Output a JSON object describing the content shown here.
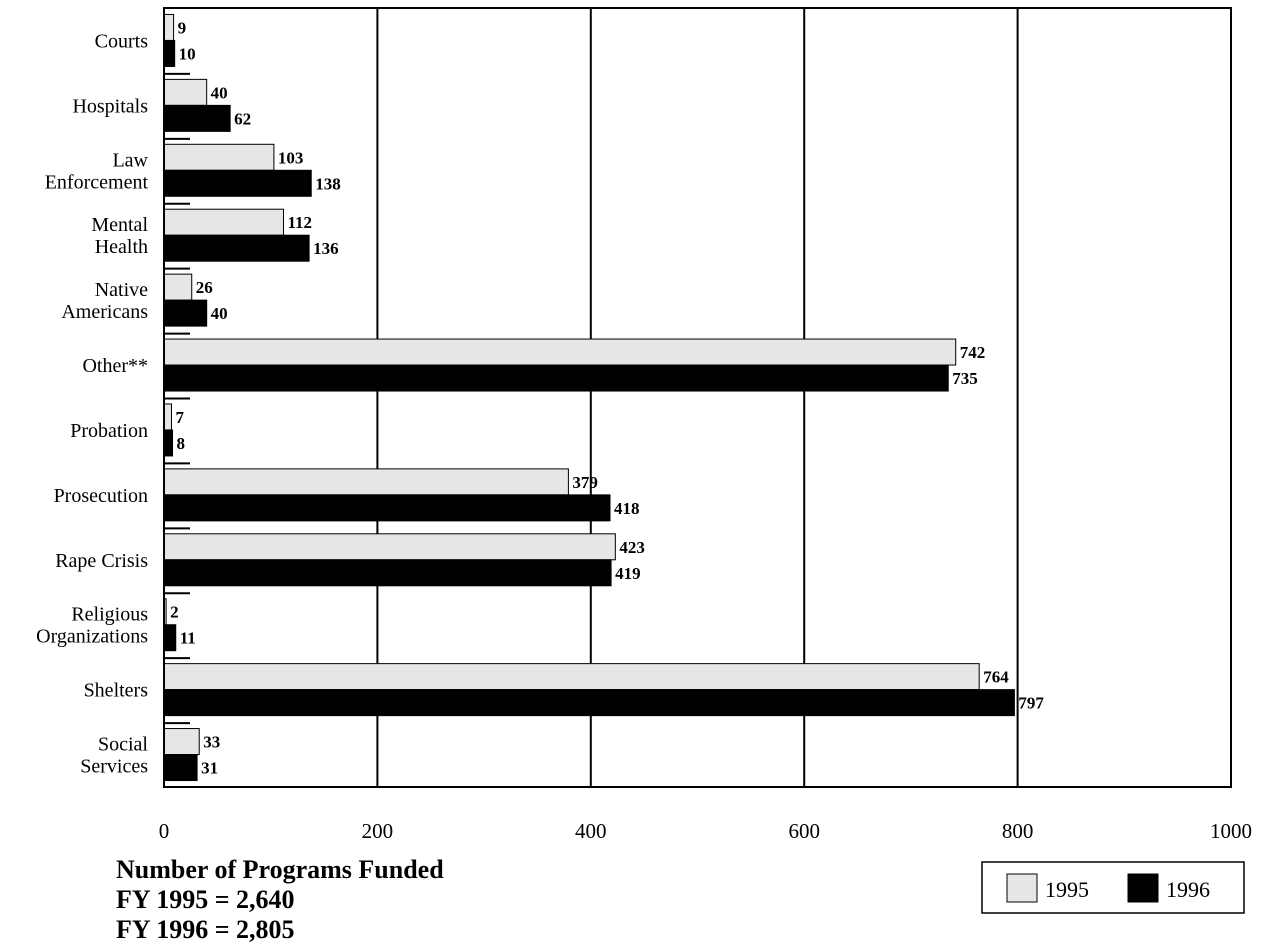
{
  "chart_data": {
    "type": "bar",
    "orientation": "horizontal",
    "categories": [
      [
        "Courts"
      ],
      [
        "Hospitals"
      ],
      [
        "Law",
        "Enforcement"
      ],
      [
        "Mental",
        "Health"
      ],
      [
        "Native",
        "Americans"
      ],
      [
        "Other**"
      ],
      [
        "Probation"
      ],
      [
        "Prosecution"
      ],
      [
        "Rape Crisis"
      ],
      [
        "Religious",
        "Organizations"
      ],
      [
        "Shelters"
      ],
      [
        "Social",
        "Services"
      ]
    ],
    "series": [
      {
        "name": "1995",
        "color": "#e6e6e6",
        "values": [
          9,
          40,
          103,
          112,
          26,
          742,
          7,
          379,
          423,
          2,
          764,
          33
        ]
      },
      {
        "name": "1996",
        "color": "#000000",
        "values": [
          10,
          62,
          138,
          136,
          40,
          735,
          8,
          418,
          419,
          11,
          797,
          31
        ]
      }
    ],
    "xlim": [
      0,
      1000
    ],
    "xticks": [
      0,
      200,
      400,
      600,
      800,
      1000
    ],
    "grid": "vertical",
    "legend_position": "bottom-right"
  },
  "footer": {
    "title": "Number of Programs Funded",
    "line1": "FY 1995 = 2,640",
    "line2": "FY 1996 = 2,805"
  }
}
